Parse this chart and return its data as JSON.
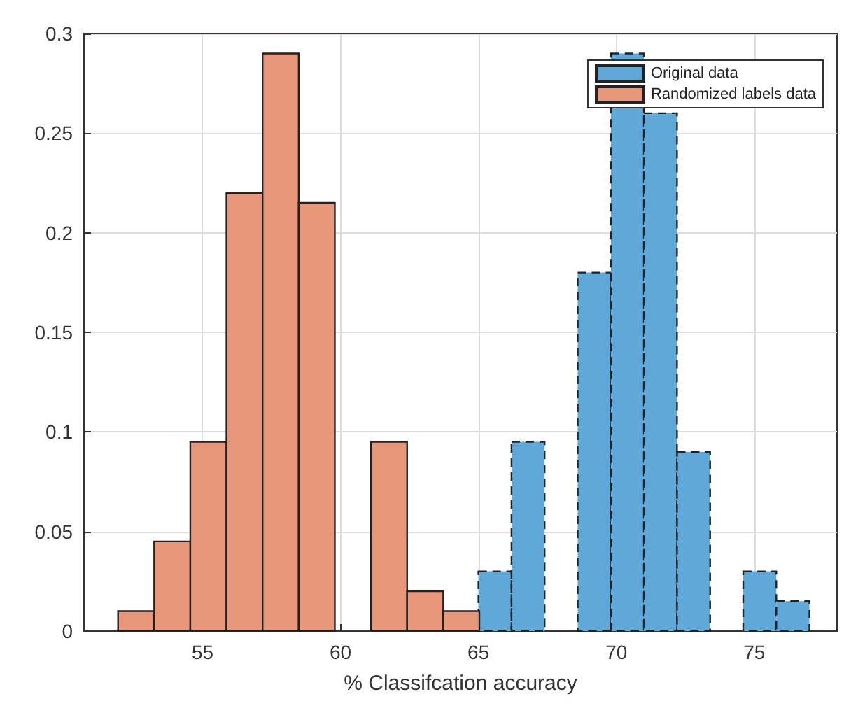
{
  "chart_data": {
    "type": "bar",
    "xlabel": "% Classifcation accuracy",
    "xlim": [
      50.7,
      78
    ],
    "xticks": [
      55,
      60,
      65,
      70,
      75
    ],
    "ylim": [
      0,
      0.3
    ],
    "yticks": [
      0,
      0.05,
      0.1,
      0.15,
      0.2,
      0.25,
      0.3
    ],
    "grid": true,
    "legend": "top right",
    "series": [
      {
        "name": "Original data",
        "color": "#5fa8d8",
        "line_style": "dashed",
        "x": [
          65.6,
          66.8,
          68,
          69.2,
          70.4,
          71.6,
          72.8,
          74,
          75.2,
          76.4
        ],
        "values": [
          0.03,
          0.095,
          null,
          0.18,
          0.29,
          0.26,
          0.09,
          null,
          0.03,
          0.015
        ]
      },
      {
        "name": "Randomized labels data",
        "color": "#e8977a",
        "line_style": "solid",
        "x": [
          52.59,
          53.9,
          55.21,
          56.52,
          57.83,
          59.14,
          60.45,
          61.76,
          63.07,
          64.38
        ],
        "values": [
          0.01,
          0.045,
          0.095,
          0.22,
          0.29,
          0.215,
          null,
          0.095,
          0.02,
          0.01
        ]
      }
    ]
  }
}
